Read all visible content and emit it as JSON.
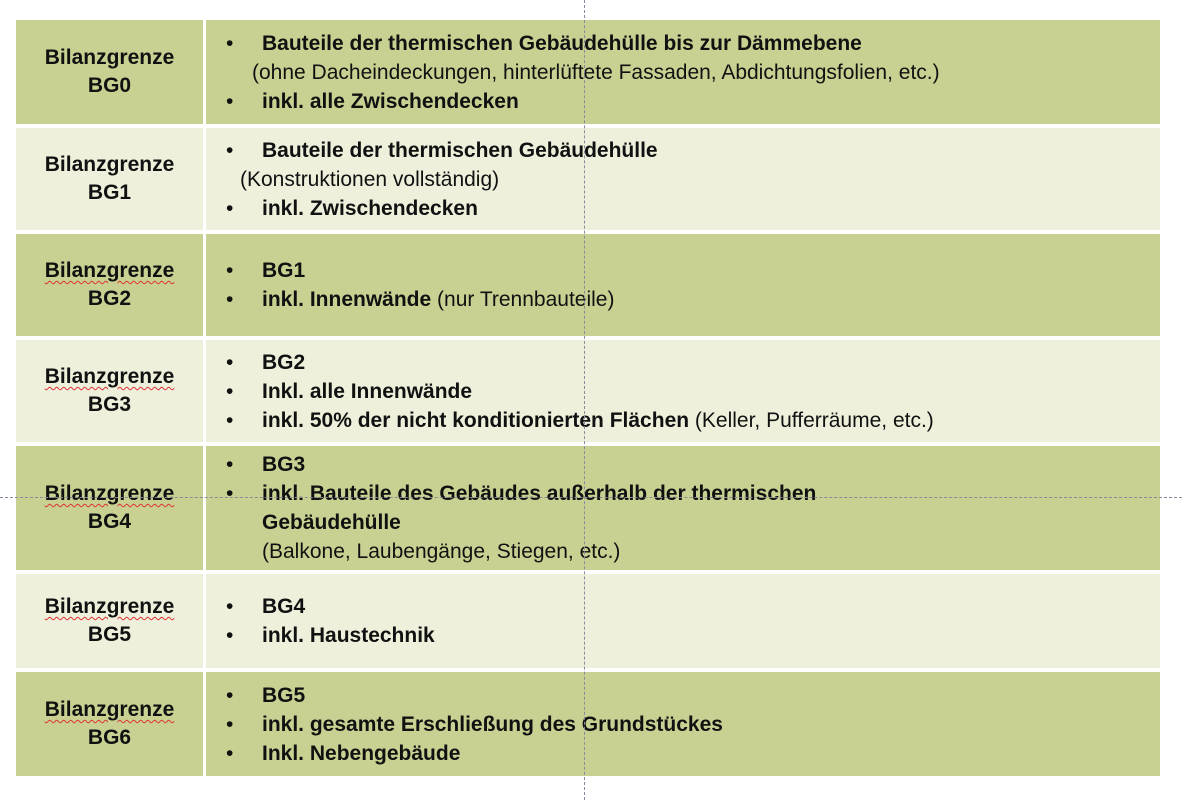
{
  "colors": {
    "row_dark": "#c9d192",
    "row_light": "#eef0dc"
  },
  "rows": [
    {
      "label1": "Bilanzgrenze",
      "label2": "BG0",
      "lines": [
        {
          "bullet": true,
          "bold": "Bauteile der thermischen Gebäudehülle bis zur Dämmebene",
          "normal": ""
        },
        {
          "bullet": false,
          "bold": "",
          "normal": "(ohne Dacheindeckungen, hinterlüftete Fassaden, Abdichtungsfolien, etc.)"
        },
        {
          "bullet": true,
          "bold": "inkl. alle Zwischendecken",
          "normal": ""
        }
      ]
    },
    {
      "label1": "Bilanzgrenze",
      "label2": "BG1",
      "lines": [
        {
          "bullet": true,
          "bold": "Bauteile der thermischen Gebäudehülle",
          "normal": ""
        },
        {
          "bullet": false,
          "bold": "",
          "normal": "(Konstruktionen vollständig)"
        },
        {
          "bullet": true,
          "bold": "inkl. Zwischendecken",
          "normal": ""
        }
      ]
    },
    {
      "label1": "Bilanzgrenze",
      "label2": "BG2",
      "lines": [
        {
          "bullet": true,
          "bold": "BG1",
          "normal": ""
        },
        {
          "bullet": true,
          "bold": "inkl. Innenwände",
          "normal": " (nur Trennbauteile)"
        }
      ]
    },
    {
      "label1": "Bilanzgrenze",
      "label2": "BG3",
      "lines": [
        {
          "bullet": true,
          "bold": "BG2",
          "normal": ""
        },
        {
          "bullet": true,
          "bold": "Inkl. alle Innenwände",
          "normal": ""
        },
        {
          "bullet": true,
          "bold": "inkl. 50% der nicht konditionierten Flächen",
          "normal": " (Keller, Pufferräume, etc.)"
        }
      ]
    },
    {
      "label1": "Bilanzgrenze",
      "label2": "BG4",
      "lines": [
        {
          "bullet": true,
          "bold": "BG3",
          "normal": ""
        },
        {
          "bullet": true,
          "bold": "inkl. Bauteile des Gebäudes außerhalb der thermischen",
          "normal": ""
        },
        {
          "bullet": false,
          "bold": "Gebäudehülle",
          "normal": ""
        },
        {
          "bullet": false,
          "bold": "",
          "normal": "(Balkone, Laubengänge, Stiegen, etc.)"
        }
      ]
    },
    {
      "label1": "Bilanzgrenze",
      "label2": "BG5",
      "lines": [
        {
          "bullet": true,
          "bold": "BG4",
          "normal": ""
        },
        {
          "bullet": true,
          "bold": "inkl. Haustechnik",
          "normal": ""
        }
      ]
    },
    {
      "label1": "Bilanzgrenze",
      "label2": "BG6",
      "lines": [
        {
          "bullet": true,
          "bold": "BG5",
          "normal": ""
        },
        {
          "bullet": true,
          "bold": "inkl. gesamte Erschließung des Grundstückes",
          "normal": ""
        },
        {
          "bullet": true,
          "bold": "Inkl. Nebengebäude",
          "normal": ""
        }
      ]
    }
  ]
}
